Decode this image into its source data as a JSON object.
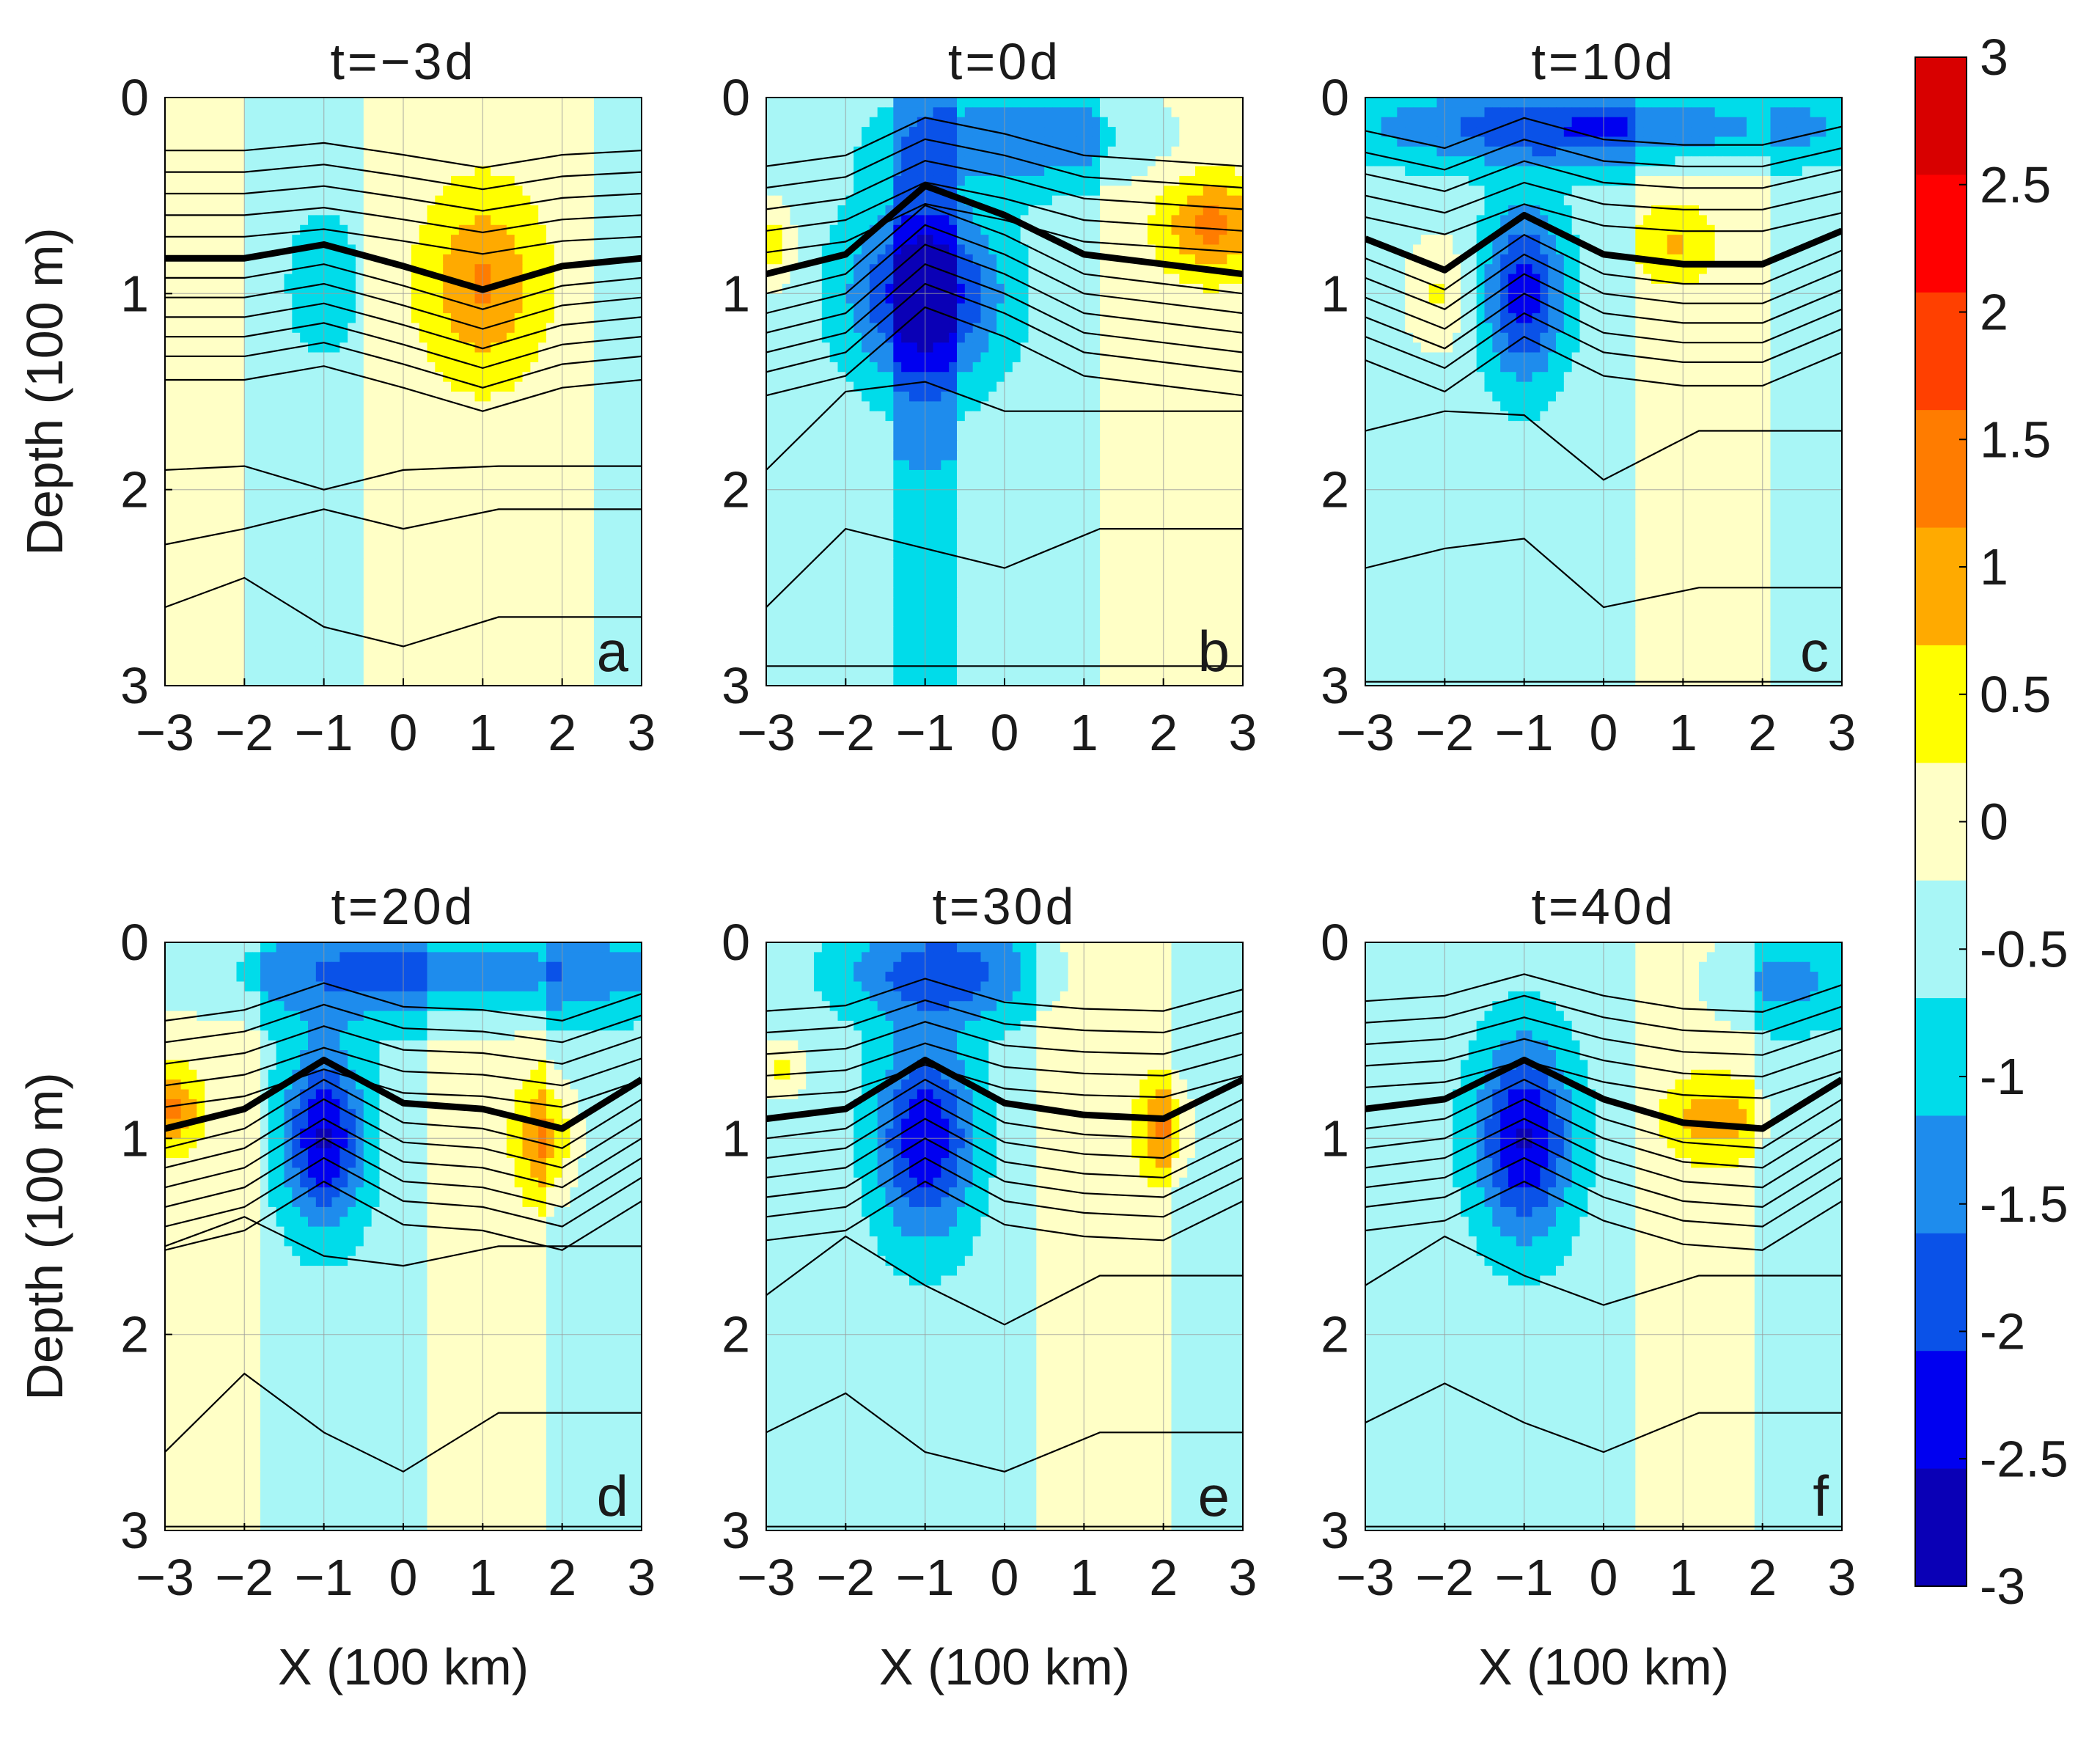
{
  "chart_data": {
    "type": "heatmap",
    "xlabel": "X (100 km)",
    "ylabel": "Depth (100 m)",
    "xlim": [
      -3,
      3
    ],
    "ylim": [
      0,
      3
    ],
    "xticks": [
      "−3",
      "−2",
      "−1",
      "0",
      "1",
      "2",
      "3"
    ],
    "yticks": [
      "0",
      "1",
      "2",
      "3"
    ],
    "grid": true,
    "panels": [
      {
        "title": "t=−3d",
        "label": "a",
        "blobs": [
          {
            "x": 1.0,
            "d": 0.95,
            "sx": 0.7,
            "sd": 0.45,
            "amp": 1.3
          },
          {
            "x": -1.0,
            "d": 0.95,
            "sx": 0.45,
            "sd": 0.35,
            "amp": -0.7
          }
        ],
        "bands": [
          {
            "x0": -2.0,
            "x1": -0.5,
            "v": -0.25
          },
          {
            "x0": -0.5,
            "x1": 2.4,
            "v": 0.25
          },
          {
            "x0": 2.4,
            "x1": 3.0,
            "v": -0.25
          },
          {
            "x0": -3.0,
            "x1": -2.0,
            "v": 0.25
          }
        ],
        "bold": [
          [
            -3,
            0.82
          ],
          [
            -2,
            0.82
          ],
          [
            -1,
            0.75
          ],
          [
            0,
            0.86
          ],
          [
            1,
            0.98
          ],
          [
            2,
            0.86
          ],
          [
            3,
            0.82
          ]
        ],
        "deep": [
          [
            0.0,
            0
          ],
          [
            -3,
            1.9,
            1.88,
            2.0,
            1.9,
            1.88
          ],
          [
            -3,
            2.28,
            2.2,
            2.1,
            2.2,
            2.1
          ],
          [
            -3,
            2.6,
            2.45,
            2.7,
            2.8,
            2.65
          ]
        ]
      },
      {
        "title": "t=0d",
        "label": "b",
        "blobs": [
          {
            "x": -1.0,
            "d": 1.0,
            "sx": 0.9,
            "sd": 0.45,
            "amp": -2.3
          },
          {
            "x": 0.3,
            "d": 0.2,
            "sx": 1.6,
            "sd": 0.25,
            "amp": -1.2
          },
          {
            "x": 2.6,
            "d": 0.65,
            "sx": 0.6,
            "sd": 0.25,
            "amp": 1.4
          },
          {
            "x": -2.9,
            "d": 0.75,
            "sx": 0.25,
            "sd": 0.2,
            "amp": 1.1
          }
        ],
        "bands": [
          {
            "x0": -3.0,
            "x1": 1.2,
            "v": -0.25
          },
          {
            "x0": 1.2,
            "x1": 3.0,
            "v": 0.25
          },
          {
            "x0": -1.4,
            "x1": -0.6,
            "v": -0.7
          }
        ],
        "bold": [
          [
            -3,
            0.9
          ],
          [
            -2,
            0.8
          ],
          [
            -1,
            0.45
          ],
          [
            0,
            0.6
          ],
          [
            1,
            0.8
          ],
          [
            2,
            0.85
          ],
          [
            3,
            0.9
          ]
        ],
        "deep": [
          [
            0.0,
            0
          ],
          [
            -3,
            1.9,
            1.5,
            1.45,
            1.6,
            1.6
          ],
          [
            -3,
            2.6,
            2.2,
            2.3,
            2.4,
            2.2
          ],
          [
            -3,
            2.9,
            2.9,
            2.9,
            2.9,
            2.9
          ]
        ]
      },
      {
        "title": "t=10d",
        "label": "c",
        "blobs": [
          {
            "x": -1.0,
            "d": 1.0,
            "sx": 0.5,
            "sd": 0.45,
            "amp": -2.0
          },
          {
            "x": 0.0,
            "d": 0.15,
            "sx": 3.0,
            "sd": 0.2,
            "amp": -1.8
          },
          {
            "x": -2.1,
            "d": 1.0,
            "sx": 0.4,
            "sd": 0.3,
            "amp": 0.8
          },
          {
            "x": 0.9,
            "d": 0.75,
            "sx": 0.5,
            "sd": 0.2,
            "amp": 0.8
          }
        ],
        "bands": [
          {
            "x0": -3.0,
            "x1": 0.4,
            "v": -0.25
          },
          {
            "x0": 0.4,
            "x1": 2.1,
            "v": 0.25
          },
          {
            "x0": 2.1,
            "x1": 3.0,
            "v": -0.25
          }
        ],
        "bold": [
          [
            -3,
            0.72
          ],
          [
            -2,
            0.88
          ],
          [
            -1,
            0.6
          ],
          [
            0,
            0.8
          ],
          [
            1,
            0.85
          ],
          [
            2,
            0.85
          ],
          [
            3,
            0.68
          ]
        ],
        "deep": [
          [
            0.0,
            0
          ],
          [
            -3,
            1.7,
            1.6,
            1.62,
            1.95,
            1.7
          ],
          [
            -3,
            2.4,
            2.3,
            2.25,
            2.6,
            2.5
          ],
          [
            -3,
            2.98,
            2.98,
            2.98,
            2.98,
            2.98
          ]
        ]
      },
      {
        "title": "t=20d",
        "label": "d",
        "blobs": [
          {
            "x": -1.0,
            "d": 1.0,
            "sx": 0.5,
            "sd": 0.45,
            "amp": -2.3
          },
          {
            "x": 0.5,
            "d": 0.15,
            "sx": 3.0,
            "sd": 0.25,
            "amp": -1.6
          },
          {
            "x": -2.9,
            "d": 0.85,
            "sx": 0.35,
            "sd": 0.2,
            "amp": 1.3
          },
          {
            "x": 1.8,
            "d": 1.0,
            "sx": 0.35,
            "sd": 0.3,
            "amp": 1.4
          }
        ],
        "bands": [
          {
            "x0": -3.0,
            "x1": -1.8,
            "v": 0.25
          },
          {
            "x0": -1.8,
            "x1": 0.3,
            "v": -0.25
          },
          {
            "x0": 0.3,
            "x1": 1.8,
            "v": 0.25
          },
          {
            "x0": 1.8,
            "x1": 3.0,
            "v": -0.25
          }
        ],
        "bold": [
          [
            -3,
            0.95
          ],
          [
            -2,
            0.85
          ],
          [
            -1,
            0.6
          ],
          [
            0,
            0.82
          ],
          [
            1,
            0.85
          ],
          [
            2,
            0.95
          ],
          [
            3,
            0.7
          ]
        ],
        "deep": [
          [
            0.0,
            0
          ],
          [
            -3,
            1.55,
            1.4,
            1.6,
            1.65,
            1.55
          ],
          [
            -3,
            2.6,
            2.2,
            2.5,
            2.7,
            2.4
          ],
          [
            -3,
            2.98,
            2.98,
            2.98,
            2.98,
            2.98
          ]
        ]
      },
      {
        "title": "t=30d",
        "label": "e",
        "blobs": [
          {
            "x": -1.0,
            "d": 1.0,
            "sx": 0.6,
            "sd": 0.5,
            "amp": -2.2
          },
          {
            "x": -0.8,
            "d": 0.15,
            "sx": 1.2,
            "sd": 0.25,
            "amp": -1.6
          },
          {
            "x": 2.0,
            "d": 0.95,
            "sx": 0.3,
            "sd": 0.25,
            "amp": 1.3
          },
          {
            "x": -2.8,
            "d": 0.65,
            "sx": 0.3,
            "sd": 0.15,
            "amp": 0.9
          }
        ],
        "bands": [
          {
            "x0": -3.0,
            "x1": 0.4,
            "v": -0.25
          },
          {
            "x0": 0.4,
            "x1": 2.1,
            "v": 0.25
          },
          {
            "x0": 2.1,
            "x1": 3.0,
            "v": -0.25
          }
        ],
        "bold": [
          [
            -3,
            0.9
          ],
          [
            -2,
            0.85
          ],
          [
            -1,
            0.6
          ],
          [
            0,
            0.82
          ],
          [
            1,
            0.88
          ],
          [
            2,
            0.9
          ],
          [
            3,
            0.7
          ]
        ],
        "deep": [
          [
            0.0,
            0
          ],
          [
            -3,
            1.8,
            1.5,
            1.75,
            1.95,
            1.7
          ],
          [
            -3,
            2.5,
            2.3,
            2.6,
            2.7,
            2.5
          ],
          [
            -3,
            2.98,
            2.98,
            2.98,
            2.98,
            2.98
          ]
        ]
      },
      {
        "title": "t=40d",
        "label": "f",
        "blobs": [
          {
            "x": -1.0,
            "d": 1.0,
            "sx": 0.6,
            "sd": 0.5,
            "amp": -2.3
          },
          {
            "x": 2.3,
            "d": 0.2,
            "sx": 1.0,
            "sd": 0.25,
            "amp": -0.9
          },
          {
            "x": 1.4,
            "d": 0.9,
            "sx": 0.6,
            "sd": 0.2,
            "amp": 1.1
          }
        ],
        "bands": [
          {
            "x0": -3.0,
            "x1": 0.4,
            "v": -0.25
          },
          {
            "x0": 0.4,
            "x1": 1.9,
            "v": 0.25
          },
          {
            "x0": 1.9,
            "x1": 3.0,
            "v": -0.25
          }
        ],
        "bold": [
          [
            -3,
            0.85
          ],
          [
            -2,
            0.8
          ],
          [
            -1,
            0.6
          ],
          [
            0,
            0.8
          ],
          [
            1,
            0.92
          ],
          [
            2,
            0.95
          ],
          [
            3,
            0.7
          ]
        ],
        "deep": [
          [
            0.0,
            0
          ],
          [
            -3,
            1.75,
            1.5,
            1.7,
            1.85,
            1.7
          ],
          [
            -3,
            2.45,
            2.25,
            2.45,
            2.6,
            2.4
          ],
          [
            -3,
            2.98,
            2.98,
            2.98,
            2.98,
            2.98
          ]
        ]
      }
    ],
    "colorbar": {
      "range": [
        -3,
        3
      ],
      "step": 0.5,
      "tick_labels": [
        "3",
        "2.5",
        "2",
        "1.5",
        "1",
        "0.5",
        "0",
        "-0.5",
        "-1",
        "-1.5",
        "-2",
        "-2.5",
        "-3"
      ],
      "colors": [
        "#0a00b6",
        "#0000f0",
        "#0a52e8",
        "#1e8ced",
        "#00dcea",
        "#a8f6f6",
        "#ffffc6",
        "#ffff00",
        "#ffaa00",
        "#ff7c00",
        "#ff4000",
        "#ff0000",
        "#d80000"
      ]
    }
  }
}
